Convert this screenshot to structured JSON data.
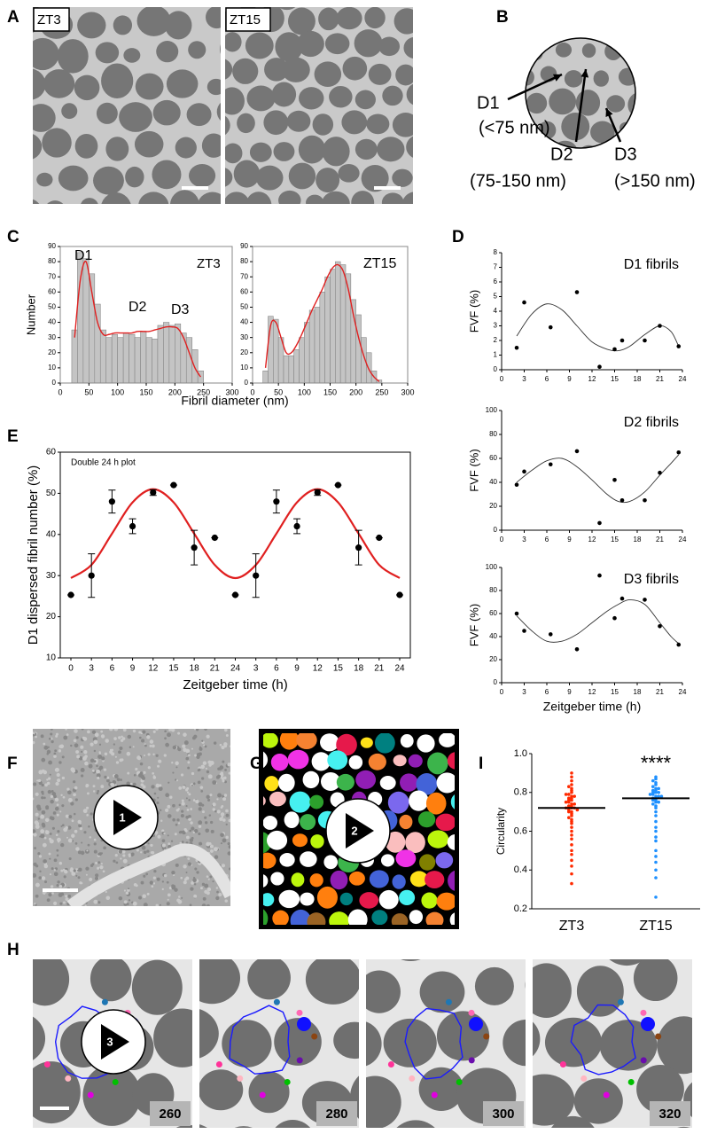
{
  "panels": [
    "A",
    "B",
    "C",
    "D",
    "E",
    "F",
    "G",
    "H",
    "I"
  ],
  "a_labels": [
    "ZT3",
    "ZT15"
  ],
  "b_labels": [
    "D1",
    "(<75 nm)",
    "D2",
    "(75-150 nm)",
    "D3",
    "(>150 nm)"
  ],
  "videos": [
    "1",
    "2",
    "3"
  ],
  "frames": [
    260,
    280,
    300,
    320
  ],
  "chart_data": [
    {
      "type": "histogram",
      "ylabel": "Number",
      "xlabel": "Fibril diameter (nm)",
      "annotations": [
        "D1",
        "D2",
        "D3",
        "ZT3"
      ],
      "bins": [
        20,
        30,
        40,
        50,
        60,
        70,
        80,
        90,
        100,
        110,
        120,
        130,
        140,
        150,
        160,
        170,
        180,
        190,
        200,
        210,
        220,
        230,
        240,
        250
      ],
      "values": [
        35,
        86,
        82,
        72,
        52,
        35,
        30,
        32,
        30,
        33,
        32,
        30,
        34,
        30,
        29,
        38,
        40,
        38,
        39,
        33,
        30,
        22,
        8
      ],
      "fit": [
        30,
        68,
        80,
        60,
        40,
        32,
        32,
        33,
        33,
        33,
        33,
        34,
        34,
        34,
        35,
        36,
        37,
        37,
        36,
        30,
        20,
        10,
        4
      ],
      "color": "#c4c4c4",
      "fit_color": "#e02020",
      "xlim": [
        0,
        300
      ],
      "xticks": [
        0,
        50,
        100,
        150,
        200,
        250,
        300
      ],
      "ylim": [
        0,
        90
      ],
      "yticks": [
        0,
        10,
        20,
        30,
        40,
        50,
        60,
        70,
        80,
        90
      ]
    },
    {
      "type": "histogram",
      "annotations": [
        "ZT15"
      ],
      "bins": [
        20,
        30,
        40,
        50,
        60,
        70,
        80,
        90,
        100,
        110,
        120,
        130,
        140,
        150,
        160,
        170,
        180,
        190,
        200,
        210,
        220,
        230,
        240,
        250
      ],
      "values": [
        8,
        44,
        42,
        30,
        18,
        18,
        22,
        30,
        40,
        48,
        50,
        60,
        70,
        75,
        80,
        78,
        72,
        55,
        45,
        30,
        20,
        8,
        2
      ],
      "fit": [
        10,
        38,
        40,
        30,
        20,
        20,
        25,
        32,
        40,
        48,
        55,
        62,
        70,
        76,
        78,
        74,
        62,
        45,
        30,
        18,
        9,
        4,
        1
      ],
      "color": "#c4c4c4",
      "fit_color": "#e02020",
      "xlim": [
        0,
        300
      ],
      "xticks": [
        0,
        50,
        100,
        150,
        200,
        250,
        300
      ],
      "ylim": [
        0,
        90
      ],
      "yticks": [
        0,
        10,
        20,
        30,
        40,
        50,
        60,
        70,
        80,
        90
      ]
    },
    {
      "type": "scatter",
      "annotation": "D1 fibrils",
      "ylabel": "FVF (%)",
      "x": [
        2,
        3,
        6.5,
        10,
        13,
        15,
        16,
        19,
        21,
        23.5
      ],
      "values": [
        1.5,
        4.6,
        2.9,
        5.3,
        0.2,
        1.4,
        2.0,
        2.0,
        3.0,
        1.6
      ],
      "fit_x": [
        2,
        4,
        6,
        8,
        10,
        12,
        14,
        15.5,
        17,
        19,
        21,
        22.5,
        23.5
      ],
      "fit": [
        2.3,
        3.8,
        4.5,
        4.1,
        3.0,
        1.9,
        1.4,
        1.3,
        1.6,
        2.4,
        3.0,
        2.6,
        1.6
      ],
      "color": "#000000",
      "xlim": [
        0,
        24
      ],
      "xticks": [
        0,
        3,
        6,
        9,
        12,
        15,
        18,
        21,
        24
      ],
      "ylim": [
        0,
        8
      ],
      "yticks": [
        0,
        1,
        2,
        3,
        4,
        5,
        6,
        7,
        8
      ]
    },
    {
      "type": "scatter",
      "annotation": "D2 fibrils",
      "ylabel": "FVF (%)",
      "x": [
        2,
        3,
        6.5,
        10,
        13,
        15,
        16,
        19,
        21,
        23.5
      ],
      "values": [
        38,
        49,
        55,
        66,
        6,
        42,
        25,
        25,
        48,
        65
      ],
      "fit_x": [
        2,
        4,
        6,
        8,
        10,
        12,
        14,
        15.5,
        17,
        19,
        21,
        22.5,
        23.5
      ],
      "fit": [
        40,
        50,
        58,
        60,
        53,
        42,
        30,
        24,
        24,
        32,
        46,
        56,
        63
      ],
      "color": "#000000",
      "xlim": [
        0,
        24
      ],
      "xticks": [
        0,
        3,
        6,
        9,
        12,
        15,
        18,
        21,
        24
      ],
      "ylim": [
        0,
        100
      ],
      "yticks": [
        0,
        20,
        40,
        60,
        80,
        100
      ]
    },
    {
      "type": "scatter",
      "annotation": "D3 fibrils",
      "ylabel": "FVF (%)",
      "xlabel": "Zeitgeber time (h)",
      "x": [
        2,
        3,
        6.5,
        10,
        13,
        15,
        16,
        19,
        21,
        23.5
      ],
      "values": [
        60,
        45,
        42,
        29,
        93,
        56,
        73,
        72,
        49,
        33
      ],
      "fit_x": [
        2,
        4,
        6,
        8,
        10,
        12,
        14,
        15.5,
        17,
        19,
        21,
        22.5,
        23.5
      ],
      "fit": [
        58,
        45,
        36,
        36,
        42,
        52,
        62,
        68,
        72,
        68,
        52,
        40,
        34
      ],
      "color": "#000000",
      "xlim": [
        0,
        24
      ],
      "xticks": [
        0,
        3,
        6,
        9,
        12,
        15,
        18,
        21,
        24
      ],
      "ylim": [
        0,
        100
      ],
      "yticks": [
        0,
        20,
        40,
        60,
        80,
        100
      ]
    },
    {
      "type": "errorbar",
      "annotation": "Double 24 h plot",
      "ylabel": "D1 dispersed fibril number  (%)",
      "xlabel": "Zeitgeber time (h)",
      "categories": [
        "0",
        "3",
        "6",
        "9",
        "12",
        "15",
        "18",
        "21",
        "24",
        "3",
        "6",
        "9",
        "12",
        "15",
        "18",
        "21",
        "24"
      ],
      "values": [
        25.3,
        30,
        48,
        42,
        50.2,
        52,
        36.8,
        39.2,
        25.3,
        30,
        48,
        42,
        50.2,
        52,
        36.8,
        39.2,
        25.3
      ],
      "errors": [
        0,
        5.3,
        2.8,
        1.8,
        0.7,
        0,
        4.2,
        0,
        0,
        5.3,
        2.8,
        1.8,
        0.7,
        0,
        4.2,
        0,
        0
      ],
      "fit": [
        29.4,
        32.6,
        40.2,
        47.8,
        51,
        47.8,
        40.2,
        32.6,
        29.4,
        32.6,
        40.2,
        47.8,
        51,
        47.8,
        40.2,
        32.6,
        29.4
      ],
      "color": "#000000",
      "fit_color": "#e02020",
      "ylim": [
        10,
        60
      ],
      "yticks": [
        10,
        20,
        30,
        40,
        50,
        60
      ]
    },
    {
      "type": "swarm",
      "ylabel": "Circularity",
      "annotation": "****",
      "categories": [
        "ZT3",
        "ZT15"
      ],
      "groups": [
        {
          "color": "#ff2a00",
          "values": [
            0.72,
            0.74,
            0.7,
            0.76,
            0.78,
            0.8,
            0.82,
            0.84,
            0.86,
            0.88,
            0.9,
            0.68,
            0.66,
            0.64,
            0.62,
            0.6,
            0.58,
            0.56,
            0.73,
            0.75,
            0.77,
            0.71,
            0.69,
            0.79,
            0.81,
            0.83,
            0.72,
            0.74,
            0.76,
            0.7,
            0.78,
            0.53,
            0.5,
            0.48,
            0.45,
            0.42,
            0.38,
            0.33,
            0.72,
            0.75,
            0.77,
            0.79,
            0.73,
            0.71,
            0.67,
            0.65
          ]
        },
        {
          "color": "#1e90ff",
          "values": [
            0.77,
            0.78,
            0.79,
            0.8,
            0.81,
            0.82,
            0.83,
            0.84,
            0.85,
            0.86,
            0.87,
            0.88,
            0.76,
            0.75,
            0.74,
            0.73,
            0.72,
            0.7,
            0.68,
            0.65,
            0.62,
            0.6,
            0.57,
            0.55,
            0.5,
            0.47,
            0.44,
            0.4,
            0.36,
            0.26,
            0.78,
            0.79,
            0.8,
            0.81,
            0.77,
            0.76,
            0.82,
            0.75,
            0.78,
            0.8
          ]
        }
      ],
      "means": [
        0.72,
        0.77
      ],
      "ylim": [
        0.2,
        1.0
      ],
      "yticks": [
        0.2,
        0.4,
        0.6,
        0.8,
        {
          "value": 1.0,
          "label": "1.0"
        }
      ]
    }
  ]
}
